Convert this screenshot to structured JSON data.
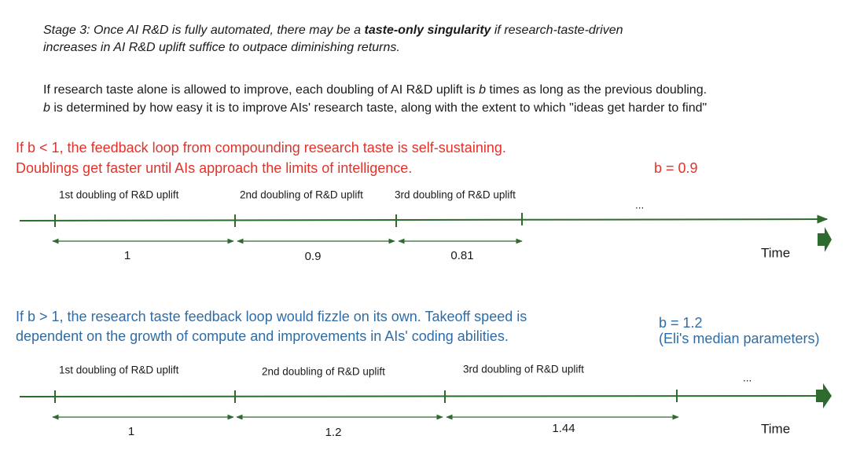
{
  "header": {
    "stage": [
      "Stage 3: Once AI R&D is fully automated, there may be a ",
      "taste-only singularity",
      " if research-taste-driven",
      "increases in AI R&D uplift suffice to outpace diminishing returns."
    ],
    "intro": [
      "If research taste alone is allowed to improve, each doubling of AI R&D uplift is ",
      "b",
      " times as long as the previous doubling.",
      "b",
      " is determined by how easy it is to improve AIs' research taste, along with the extent to which \"ideas get harder to find\""
    ]
  },
  "panels": [
    {
      "lines": [
        "If b < 1, the feedback loop from compounding research taste is self-sustaining.",
        "Doublings get faster until AIs approach the limits of intelligence."
      ],
      "b_label": [
        "b = 0.9"
      ],
      "doublings": [
        "1st doubling of R&D uplift",
        "2nd doubling of R&D uplift",
        "3rd doubling of R&D uplift"
      ],
      "ellipsis": "...",
      "durations": [
        "1",
        "0.9",
        "0.81"
      ],
      "axis_label": "Time"
    },
    {
      "lines": [
        "If b > 1, the research taste feedback loop would fizzle on its own. Takeoff speed is",
        "dependent on the growth of compute and improvements in AIs' coding abilities."
      ],
      "b_label": [
        "b = 1.2",
        "(Eli's median parameters)"
      ],
      "doublings": [
        "1st doubling of R&D uplift",
        "2nd doubling of R&D uplift",
        "3rd doubling of R&D uplift"
      ],
      "ellipsis": "...",
      "durations": [
        "1",
        "1.2",
        "1.44"
      ],
      "axis_label": "Time"
    }
  ]
}
